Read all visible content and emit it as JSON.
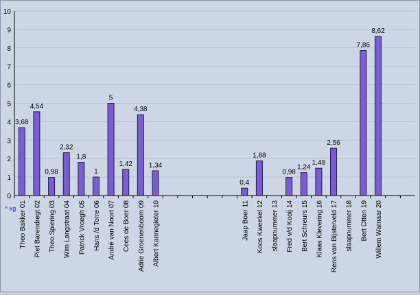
{
  "chart_data": {
    "type": "bar",
    "categories": [
      "Theo Bakker 01",
      "Piet Barendregt 02",
      "Theo Spiering 03",
      "Wim Langstraat 04",
      "Patrick Vroegh 05",
      "Hans /d Torre 06",
      "André van Noort 07",
      "Cees de Boer 08",
      "Adrie Groenenboom 09",
      "Albert Kannegieter 10",
      "",
      "",
      "",
      "",
      "",
      "Jaap Boer 11",
      "Koos Kweekel 12",
      "slaapnummer 13",
      "Fred v/d Kooij 14",
      "Bert Schreurs 15",
      "Klaas Klevering 16",
      "Rens van Bijsterveld 17",
      "slaapnummer 18",
      "Bert Otten 19",
      "Willem Warnaar 20",
      "",
      ""
    ],
    "values": [
      3.68,
      4.54,
      0.98,
      2.32,
      1.8,
      1,
      5,
      1.42,
      4.38,
      1.34,
      null,
      null,
      null,
      null,
      null,
      0.4,
      1.88,
      null,
      0.98,
      1.24,
      1.48,
      2.56,
      null,
      7.86,
      8.62,
      null,
      null
    ],
    "data_labels": [
      "3,68",
      "4,54",
      "0,98",
      "2,32",
      "1,8",
      "1",
      "5",
      "1,42",
      "4,38",
      "1,34",
      "",
      "",
      "",
      "",
      "",
      "0,4",
      "1,88",
      "",
      "0,98",
      "1,24",
      "1,48",
      "2,56",
      "",
      "7,86",
      "8,62",
      "",
      ""
    ],
    "y_ticks": [
      "0",
      "1",
      "2",
      "3",
      "4",
      "5",
      "6",
      "7",
      "8",
      "9",
      "10"
    ],
    "ylim": [
      0,
      10
    ],
    "unit_label": "^ kg",
    "grid": true,
    "colors": {
      "bar": "#7b5cd6",
      "bar_stroke": "#1f1f3f",
      "plot_bg": "#ccd6e4",
      "grid": "#b8c2d2",
      "unit": "#2a2ab0"
    }
  }
}
